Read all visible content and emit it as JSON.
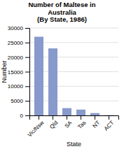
{
  "chart_data": {
    "type": "bar",
    "title": "Number of Maltese in\nAustralia\n(By State, 1986)",
    "xlabel": "State",
    "ylabel": "Number",
    "categories": [
      "Vic/Nsw",
      "Qld",
      "SA",
      "Tas",
      "NT",
      "ACT"
    ],
    "values": [
      27000,
      23000,
      2500,
      2000,
      800,
      80
    ],
    "color": "#8899cc",
    "ylim": [
      0,
      30000
    ],
    "yticks": [
      0,
      5000,
      10000,
      15000,
      20000,
      25000,
      30000
    ],
    "grid": true
  }
}
